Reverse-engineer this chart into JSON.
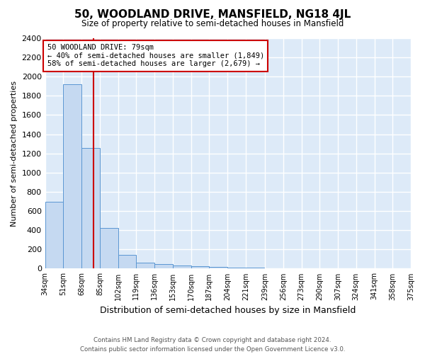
{
  "title": "50, WOODLAND DRIVE, MANSFIELD, NG18 4JL",
  "subtitle": "Size of property relative to semi-detached houses in Mansfield",
  "xlabel": "Distribution of semi-detached houses by size in Mansfield",
  "ylabel": "Number of semi-detached properties",
  "property_size": 79,
  "property_label": "50 WOODLAND DRIVE: 79sqm",
  "pct_smaller": 40,
  "n_smaller": 1849,
  "pct_larger": 58,
  "n_larger": 2679,
  "bin_labels": [
    "34sqm",
    "51sqm",
    "68sqm",
    "85sqm",
    "102sqm",
    "119sqm",
    "136sqm",
    "153sqm",
    "170sqm",
    "187sqm",
    "204sqm",
    "221sqm",
    "239sqm",
    "256sqm",
    "273sqm",
    "290sqm",
    "307sqm",
    "324sqm",
    "341sqm",
    "358sqm",
    "375sqm"
  ],
  "bin_edges": [
    34,
    51,
    68,
    85,
    102,
    119,
    136,
    153,
    170,
    187,
    204,
    221,
    239,
    256,
    273,
    290,
    307,
    324,
    341,
    358,
    375
  ],
  "bar_values": [
    700,
    1920,
    1255,
    420,
    140,
    60,
    45,
    35,
    25,
    18,
    12,
    8,
    6,
    5,
    4,
    3,
    2,
    2,
    1,
    1
  ],
  "bar_color": "#c5d9f1",
  "bar_edge_color": "#5a96d2",
  "property_line_color": "#cc0000",
  "annotation_box_edge": "#cc0000",
  "background_color": "#ffffff",
  "plot_bg_color": "#ddeaf8",
  "grid_color": "#ffffff",
  "ylim": [
    0,
    2400
  ],
  "yticks": [
    0,
    200,
    400,
    600,
    800,
    1000,
    1200,
    1400,
    1600,
    1800,
    2000,
    2200,
    2400
  ],
  "footer": "Contains HM Land Registry data © Crown copyright and database right 2024.\nContains public sector information licensed under the Open Government Licence v3.0."
}
